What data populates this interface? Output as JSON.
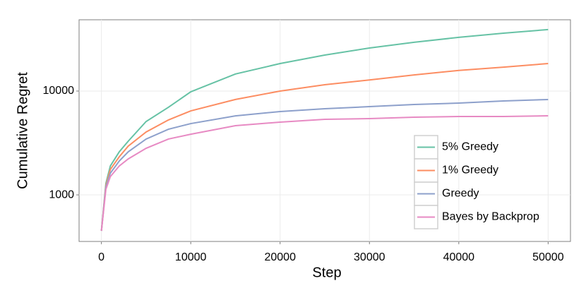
{
  "chart_data": {
    "type": "line",
    "x_label": "Step",
    "y_label": "Cumulative Regret",
    "x": [
      0,
      500,
      1000,
      2000,
      3000,
      5000,
      7500,
      10000,
      15000,
      20000,
      25000,
      30000,
      35000,
      40000,
      45000,
      50000
    ],
    "series": [
      {
        "name": "5% Greedy",
        "color": "#66c2a5",
        "values": [
          450,
          1290,
          1900,
          2600,
          3290,
          5090,
          6980,
          9840,
          14600,
          18400,
          22200,
          26000,
          29500,
          32900,
          36100,
          39100
        ]
      },
      {
        "name": "1% Greedy",
        "color": "#fc8d62",
        "values": [
          450,
          1230,
          1760,
          2330,
          2950,
          4030,
          5270,
          6440,
          8300,
          10000,
          11500,
          12800,
          14300,
          15800,
          17000,
          18400
        ]
      },
      {
        "name": "Greedy",
        "color": "#8da0cb",
        "values": [
          450,
          1190,
          1620,
          2120,
          2600,
          3450,
          4290,
          4860,
          5770,
          6350,
          6760,
          7080,
          7420,
          7660,
          8030,
          8290
        ]
      },
      {
        "name": "Bayes by Backprop",
        "color": "#e78ac3",
        "values": [
          450,
          1130,
          1500,
          1900,
          2220,
          2810,
          3450,
          3840,
          4640,
          5020,
          5340,
          5430,
          5600,
          5690,
          5690,
          5780
        ]
      }
    ],
    "xlim": [
      -2500,
      52500
    ],
    "xticks": [
      0,
      10000,
      20000,
      30000,
      40000,
      50000
    ],
    "ylim": [
      356,
      48600
    ],
    "yticks": [
      1000,
      10000
    ],
    "y_log": true,
    "grid": true,
    "legend_position": "bottom-right"
  }
}
